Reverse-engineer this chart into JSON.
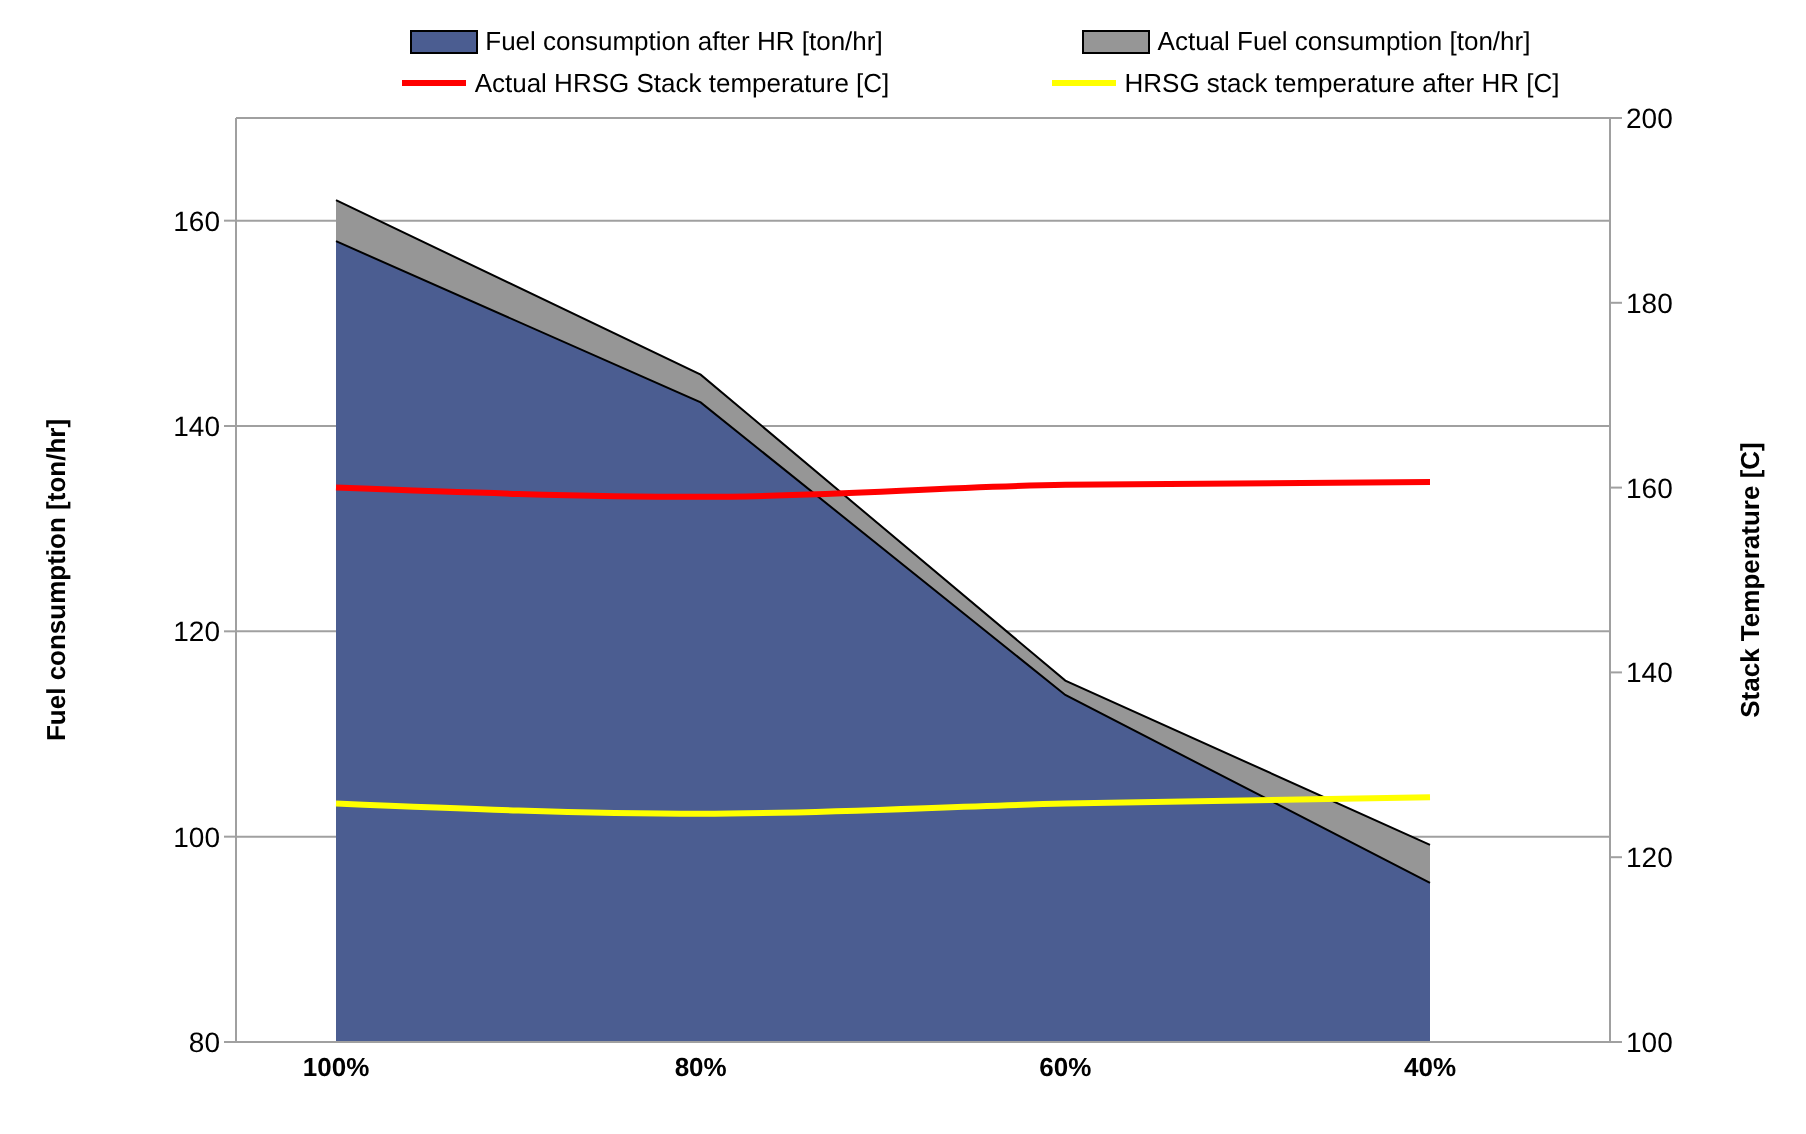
{
  "chart_data": {
    "type": "area",
    "categories": [
      "100%",
      "80%",
      "60%",
      "40%"
    ],
    "ylabel": "Fuel consumption  [ton/hr]",
    "y2label": "Stack Temperature [C]",
    "ylim": [
      80,
      170
    ],
    "yticks": [
      80,
      100,
      120,
      140,
      160
    ],
    "y2lim": [
      100,
      200
    ],
    "y2ticks": [
      100,
      120,
      140,
      160,
      180,
      200
    ],
    "grid": "y",
    "legend": "top",
    "series": [
      {
        "name": "Fuel consumption after HR [ton/hr]",
        "color": "#4b5d91",
        "values": [
          158,
          142.3,
          113.8,
          95.5
        ]
      },
      {
        "name": "Actual Fuel consumption [ton/hr]",
        "color": "#969696",
        "values": [
          162,
          145,
          115.2,
          99.2
        ]
      },
      {
        "name": "Actual HRSG Stack temperature [C]",
        "type": "line",
        "axis": "y2",
        "color": "#ff0000",
        "values": [
          160,
          159,
          160.3,
          160.6
        ]
      },
      {
        "name": "HRSG stack temperature after HR [C]",
        "type": "line",
        "axis": "y2",
        "color": "#ffff00",
        "values": [
          125.8,
          124.7,
          125.8,
          126.5
        ]
      }
    ]
  }
}
